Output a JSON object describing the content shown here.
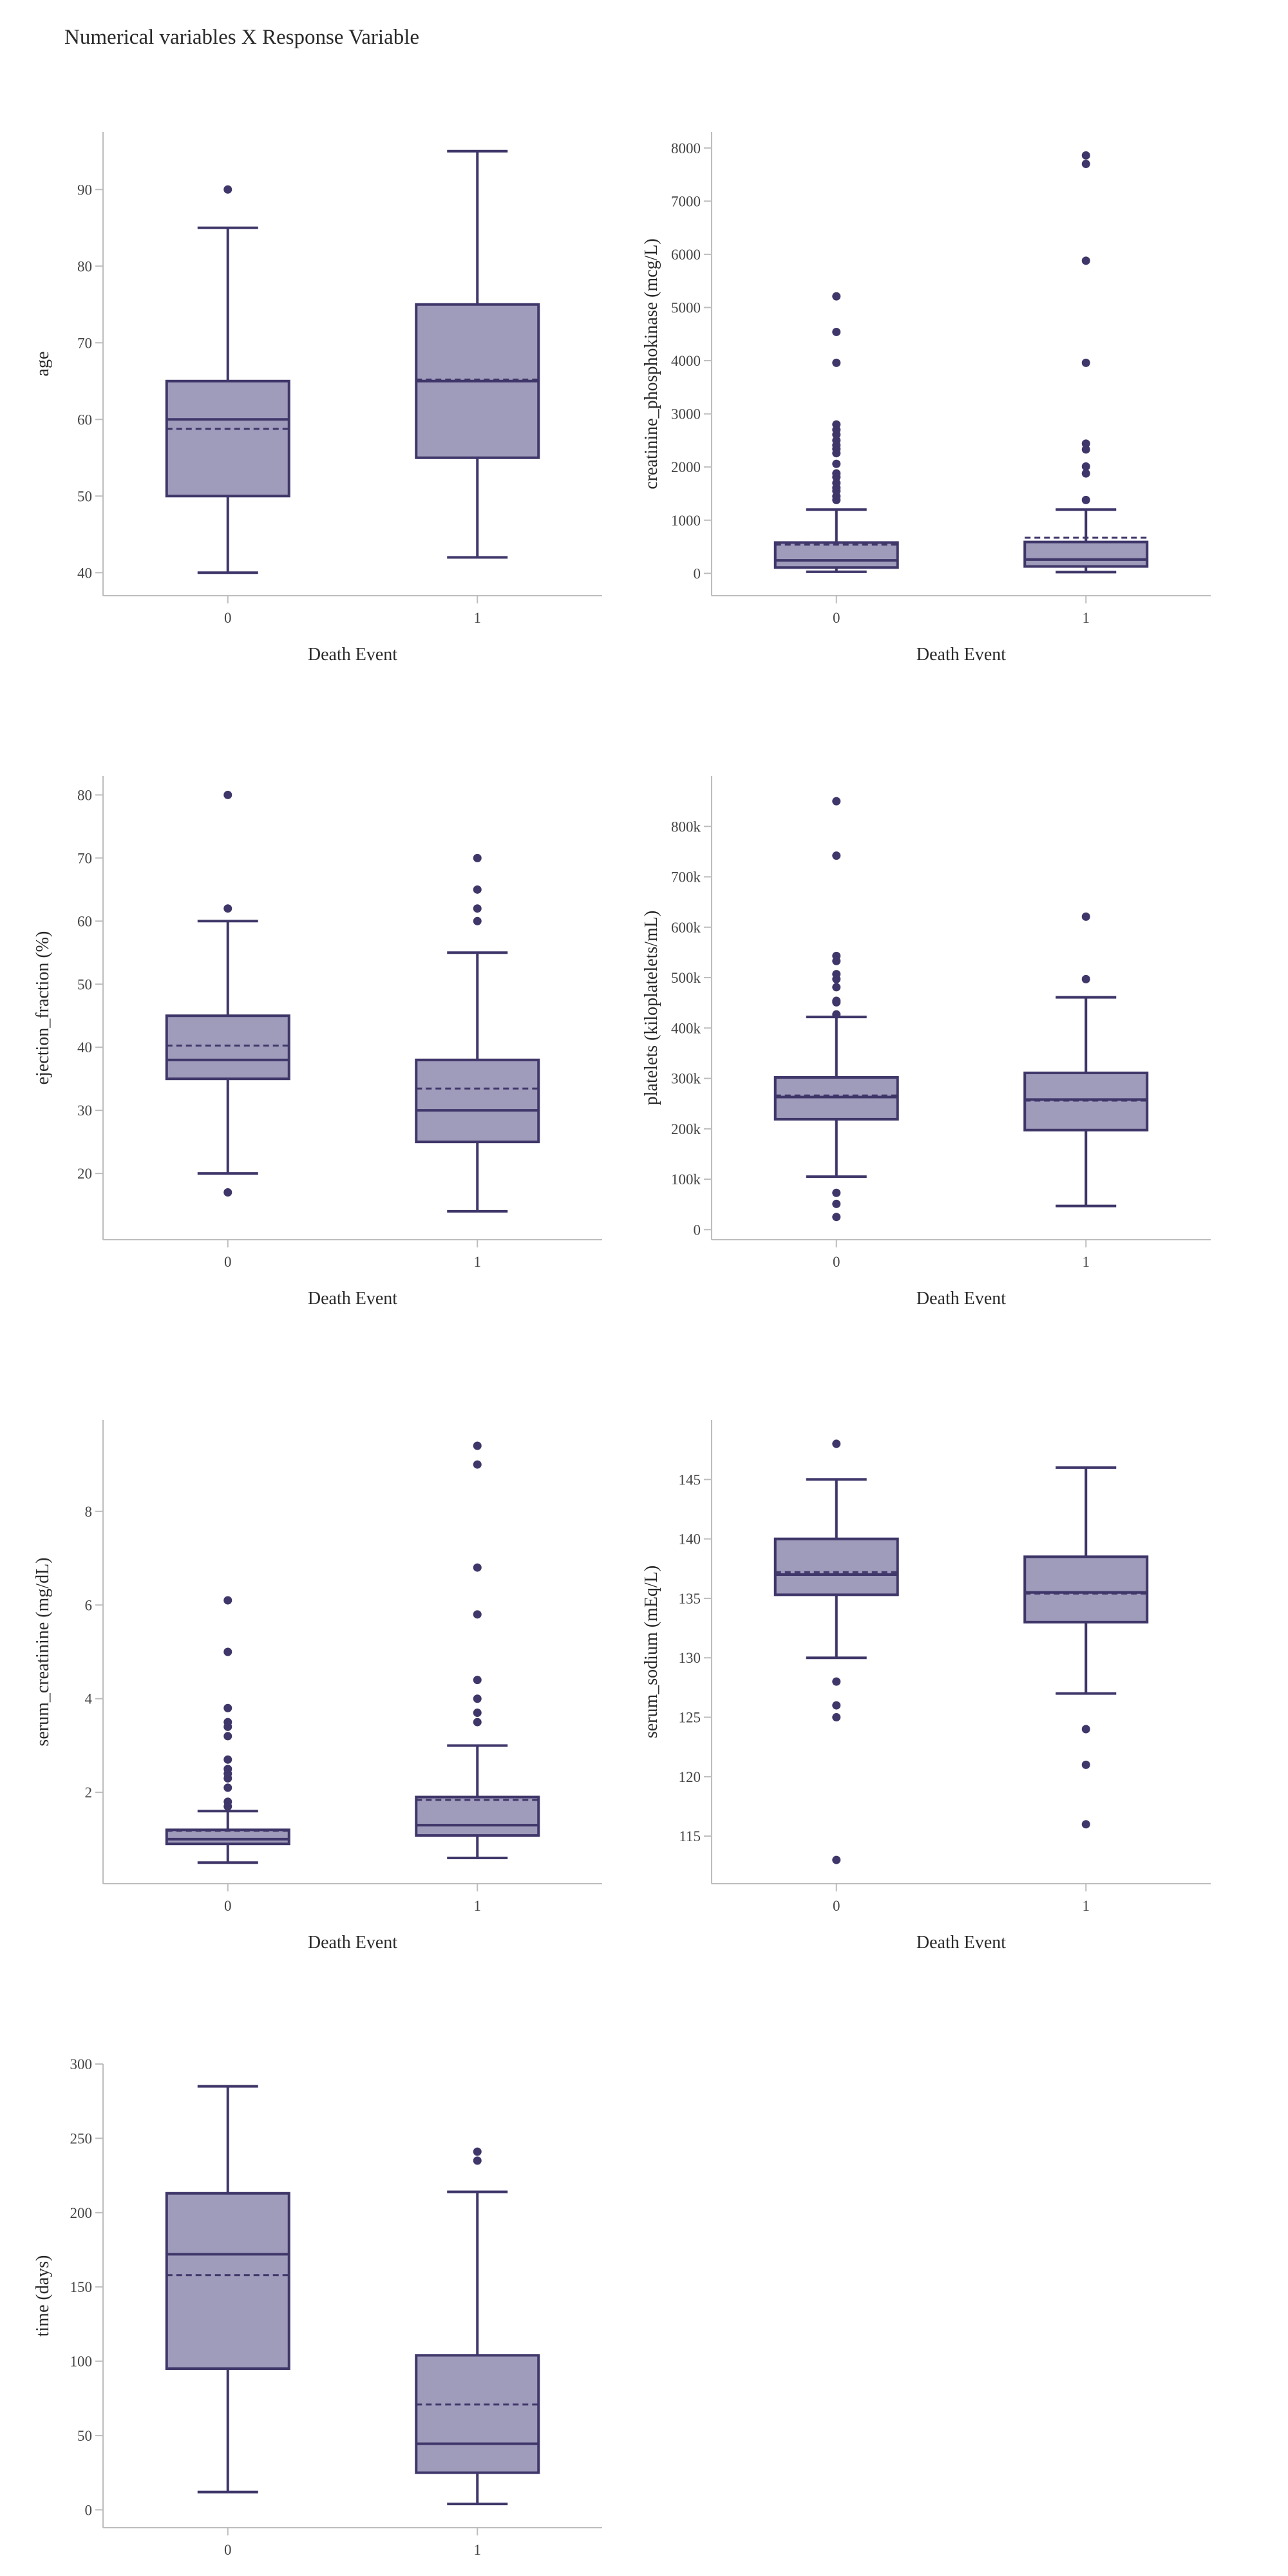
{
  "page": {
    "title": "Numerical variables X Response Variable"
  },
  "colors": {
    "fill": "#9f9bbb",
    "stroke": "#3f3669",
    "axis": "#bdbdbd",
    "text": "#444444",
    "title": "#2a2a2a"
  },
  "chart_data": [
    {
      "type": "box",
      "xlabel": "Death Event",
      "ylabel": "age",
      "categories": [
        "0",
        "1"
      ],
      "ylim": [
        37,
        97.5
      ],
      "yticks": [
        40,
        50,
        60,
        70,
        80,
        90
      ],
      "tick_labels": [
        "40",
        "50",
        "60",
        "70",
        "80",
        "90"
      ],
      "boxes": [
        {
          "category": "0",
          "min": 40,
          "q1": 50,
          "median": 60,
          "mean": 58.76,
          "q3": 65,
          "max": 85,
          "outliers": [
            90
          ]
        },
        {
          "category": "1",
          "min": 42,
          "q1": 55,
          "median": 65,
          "mean": 65.2,
          "q3": 75,
          "max": 95,
          "outliers": []
        }
      ]
    },
    {
      "type": "box",
      "xlabel": "Death Event",
      "ylabel": "creatinine_phosphokinase (mcg/L)",
      "categories": [
        "0",
        "1"
      ],
      "ylim": [
        -420,
        8300
      ],
      "yticks": [
        0,
        1000,
        2000,
        3000,
        4000,
        5000,
        6000,
        7000,
        8000
      ],
      "tick_labels": [
        "0",
        "1000",
        "2000",
        "3000",
        "4000",
        "5000",
        "6000",
        "7000",
        "8000"
      ],
      "boxes": [
        {
          "category": "0",
          "min": 30,
          "q1": 110,
          "median": 245,
          "mean": 540,
          "q3": 580,
          "max": 1200,
          "outliers": [
            1380,
            1450,
            1550,
            1610,
            1700,
            1810,
            1880,
            2060,
            2260,
            2340,
            2410,
            2500,
            2610,
            2700,
            2800,
            3960,
            4540,
            5210
          ]
        },
        {
          "category": "1",
          "min": 23,
          "q1": 130,
          "median": 260,
          "mean": 670,
          "q3": 590,
          "max": 1200,
          "outliers": [
            1380,
            1880,
            2010,
            2330,
            2440,
            3960,
            5880,
            7700,
            7860
          ]
        }
      ]
    },
    {
      "type": "box",
      "xlabel": "Death Event",
      "ylabel": "ejection_fraction (%)",
      "categories": [
        "0",
        "1"
      ],
      "ylim": [
        9.5,
        83
      ],
      "yticks": [
        20,
        30,
        40,
        50,
        60,
        70,
        80
      ],
      "tick_labels": [
        "20",
        "30",
        "40",
        "50",
        "60",
        "70",
        "80"
      ],
      "boxes": [
        {
          "category": "0",
          "min": 20,
          "q1": 35,
          "median": 38,
          "mean": 40.27,
          "q3": 45,
          "max": 60,
          "outliers": [
            17,
            62,
            80
          ]
        },
        {
          "category": "1",
          "min": 14,
          "q1": 25,
          "median": 30,
          "mean": 33.47,
          "q3": 38,
          "max": 55,
          "outliers": [
            60,
            62,
            65,
            70
          ]
        }
      ]
    },
    {
      "type": "box",
      "xlabel": "Death Event",
      "ylabel": "platelets (kiloplatelets/mL)",
      "categories": [
        "0",
        "1"
      ],
      "ylim": [
        -20000,
        900000
      ],
      "yticks": [
        0,
        100000,
        200000,
        300000,
        400000,
        500000,
        600000,
        700000,
        800000
      ],
      "tick_labels": [
        "0",
        "100k",
        "200k",
        "300k",
        "400k",
        "500k",
        "600k",
        "700k",
        "800k"
      ],
      "boxes": [
        {
          "category": "0",
          "min": 105000,
          "q1": 219000,
          "median": 263000,
          "mean": 266000,
          "q3": 302000,
          "max": 422000,
          "outliers": [
            25100,
            51000,
            73000,
            427000,
            451000,
            454000,
            481000,
            497000,
            507000,
            533000,
            543000,
            742000,
            850000
          ]
        },
        {
          "category": "1",
          "min": 47000,
          "q1": 197500,
          "median": 258000,
          "mean": 256000,
          "q3": 311000,
          "max": 461000,
          "outliers": [
            497000,
            621000
          ]
        }
      ]
    },
    {
      "type": "box",
      "xlabel": "Death Event",
      "ylabel": "serum_creatinine (mg/dL)",
      "categories": [
        "0",
        "1"
      ],
      "ylim": [
        0.05,
        9.95
      ],
      "yticks": [
        2,
        4,
        6,
        8
      ],
      "tick_labels": [
        "2",
        "4",
        "6",
        "8"
      ],
      "boxes": [
        {
          "category": "0",
          "min": 0.5,
          "q1": 0.9,
          "median": 1.0,
          "mean": 1.18,
          "q3": 1.2,
          "max": 1.6,
          "outliers": [
            1.7,
            1.8,
            2.1,
            2.3,
            2.4,
            2.5,
            2.7,
            3.2,
            3.4,
            3.5,
            3.8,
            5.0,
            6.1
          ]
        },
        {
          "category": "1",
          "min": 0.6,
          "q1": 1.08,
          "median": 1.3,
          "mean": 1.84,
          "q3": 1.9,
          "max": 3.0,
          "outliers": [
            3.5,
            3.7,
            4.0,
            4.4,
            5.8,
            6.8,
            9.0,
            9.4
          ]
        }
      ]
    },
    {
      "type": "box",
      "xlabel": "Death Event",
      "ylabel": "serum_sodium (mEq/L)",
      "categories": [
        "0",
        "1"
      ],
      "ylim": [
        111,
        150
      ],
      "yticks": [
        115,
        120,
        125,
        130,
        135,
        140,
        145
      ],
      "tick_labels": [
        "115",
        "120",
        "125",
        "130",
        "135",
        "140",
        "145"
      ],
      "boxes": [
        {
          "category": "0",
          "min": 130,
          "q1": 135.3,
          "median": 137,
          "mean": 137.2,
          "q3": 140,
          "max": 145,
          "outliers": [
            113,
            125,
            126,
            128,
            148
          ]
        },
        {
          "category": "1",
          "min": 127,
          "q1": 133,
          "median": 135.5,
          "mean": 135.4,
          "q3": 138.5,
          "max": 146,
          "outliers": [
            116,
            121,
            124
          ]
        }
      ]
    },
    {
      "type": "box",
      "xlabel": "Death Event",
      "ylabel": "time (days)",
      "categories": [
        "0",
        "1"
      ],
      "ylim": [
        -12,
        300
      ],
      "yticks": [
        0,
        50,
        100,
        150,
        200,
        250,
        300
      ],
      "tick_labels": [
        "0",
        "50",
        "100",
        "150",
        "200",
        "250",
        "300"
      ],
      "boxes": [
        {
          "category": "0",
          "min": 12,
          "q1": 95,
          "median": 172,
          "mean": 158,
          "q3": 213,
          "max": 285,
          "outliers": []
        },
        {
          "category": "1",
          "min": 4,
          "q1": 25,
          "median": 44.5,
          "mean": 70.9,
          "q3": 104,
          "max": 214,
          "outliers": [
            235,
            241
          ]
        }
      ]
    }
  ]
}
